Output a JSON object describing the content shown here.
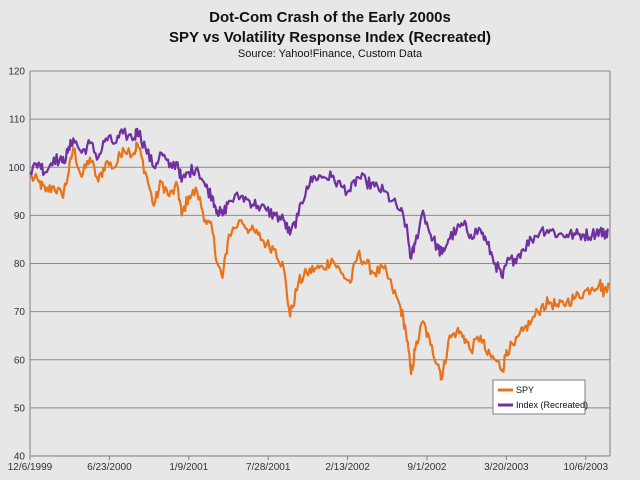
{
  "chart_data": {
    "type": "line",
    "title": "Dot-Com Crash of the Early 2000s",
    "subtitle": "SPY vs Volatility Response Index (Recreated)",
    "source": "Source: Yahoo!Finance, Custom Data",
    "xlabel": "",
    "ylabel": "",
    "ylim": [
      40,
      120
    ],
    "yticks": [
      40,
      50,
      60,
      70,
      80,
      90,
      100,
      110,
      120
    ],
    "xlim": [
      "1999-12-06",
      "2003-12-06"
    ],
    "xticks": [
      "12/6/1999",
      "6/23/2000",
      "1/9/2001",
      "7/28/2001",
      "2/13/2002",
      "9/1/2002",
      "3/20/2003",
      "10/6/2003"
    ],
    "grid": "horizontal",
    "legend_position": "bottom-right",
    "series": [
      {
        "name": "SPY",
        "color": "#e8731a",
        "points": [
          [
            "1999-12-06",
            98
          ],
          [
            "1999-12-28",
            97
          ],
          [
            "2000-01-14",
            95
          ],
          [
            "2000-02-04",
            96
          ],
          [
            "2000-02-25",
            94
          ],
          [
            "2000-03-10",
            98
          ],
          [
            "2000-03-24",
            104
          ],
          [
            "2000-04-14",
            98
          ],
          [
            "2000-05-05",
            102
          ],
          [
            "2000-05-26",
            97
          ],
          [
            "2000-06-14",
            101
          ],
          [
            "2000-07-07",
            100
          ],
          [
            "2000-07-27",
            104
          ],
          [
            "2000-08-25",
            103
          ],
          [
            "2000-09-01",
            105
          ],
          [
            "2000-09-22",
            99
          ],
          [
            "2000-10-13",
            92
          ],
          [
            "2000-11-01",
            97
          ],
          [
            "2000-11-21",
            94
          ],
          [
            "2000-12-12",
            96
          ],
          [
            "2000-12-22",
            90
          ],
          [
            "2001-01-09",
            94
          ],
          [
            "2001-01-30",
            95
          ],
          [
            "2001-02-20",
            89
          ],
          [
            "2001-03-09",
            87
          ],
          [
            "2001-03-22",
            80
          ],
          [
            "2001-04-04",
            77
          ],
          [
            "2001-04-20",
            86
          ],
          [
            "2001-05-21",
            89
          ],
          [
            "2001-06-11",
            87
          ],
          [
            "2001-07-02",
            86
          ],
          [
            "2001-07-24",
            84
          ],
          [
            "2001-08-15",
            83
          ],
          [
            "2001-09-05",
            79
          ],
          [
            "2001-09-21",
            69
          ],
          [
            "2001-10-12",
            76
          ],
          [
            "2001-11-02",
            78
          ],
          [
            "2001-11-23",
            79
          ],
          [
            "2001-12-14",
            79
          ],
          [
            "2002-01-04",
            81
          ],
          [
            "2002-01-28",
            78
          ],
          [
            "2002-02-20",
            76
          ],
          [
            "2002-03-11",
            82
          ],
          [
            "2002-04-01",
            80
          ],
          [
            "2002-04-22",
            78
          ],
          [
            "2002-05-15",
            79
          ],
          [
            "2002-06-05",
            75
          ],
          [
            "2002-06-26",
            71
          ],
          [
            "2002-07-10",
            66
          ],
          [
            "2002-07-23",
            57
          ],
          [
            "2002-08-02",
            62
          ],
          [
            "2002-08-22",
            68
          ],
          [
            "2002-09-10",
            63
          ],
          [
            "2002-09-30",
            59
          ],
          [
            "2002-10-09",
            56
          ],
          [
            "2002-10-25",
            64
          ],
          [
            "2002-11-15",
            66
          ],
          [
            "2002-12-02",
            65
          ],
          [
            "2002-12-20",
            62
          ],
          [
            "2003-01-14",
            65
          ],
          [
            "2003-01-31",
            61
          ],
          [
            "2003-02-20",
            60
          ],
          [
            "2003-03-11",
            58
          ],
          [
            "2003-03-20",
            62
          ],
          [
            "2003-04-10",
            63
          ],
          [
            "2003-05-01",
            66
          ],
          [
            "2003-05-22",
            68
          ],
          [
            "2003-06-16",
            71
          ],
          [
            "2003-07-08",
            72
          ],
          [
            "2003-07-29",
            71
          ],
          [
            "2003-08-19",
            72
          ],
          [
            "2003-09-10",
            73
          ],
          [
            "2003-10-01",
            74
          ],
          [
            "2003-10-22",
            75
          ],
          [
            "2003-11-10",
            76
          ],
          [
            "2003-11-21",
            74
          ],
          [
            "2003-12-02",
            76
          ]
        ]
      },
      {
        "name": "Index (Recreated)",
        "color": "#7030a0",
        "points": [
          [
            "1999-12-06",
            99
          ],
          [
            "1999-12-28",
            101
          ],
          [
            "2000-01-14",
            99
          ],
          [
            "2000-02-04",
            102
          ],
          [
            "2000-02-25",
            101
          ],
          [
            "2000-03-10",
            103
          ],
          [
            "2000-03-24",
            106
          ],
          [
            "2000-04-14",
            103
          ],
          [
            "2000-05-05",
            105
          ],
          [
            "2000-05-26",
            102
          ],
          [
            "2000-06-14",
            106
          ],
          [
            "2000-07-07",
            105
          ],
          [
            "2000-07-27",
            107
          ],
          [
            "2000-08-25",
            106
          ],
          [
            "2000-09-01",
            108
          ],
          [
            "2000-09-22",
            104
          ],
          [
            "2000-10-13",
            100
          ],
          [
            "2000-11-01",
            103
          ],
          [
            "2000-11-21",
            100
          ],
          [
            "2000-12-12",
            101
          ],
          [
            "2000-12-22",
            97
          ],
          [
            "2001-01-09",
            99
          ],
          [
            "2001-01-30",
            100
          ],
          [
            "2001-02-20",
            96
          ],
          [
            "2001-03-09",
            94
          ],
          [
            "2001-03-22",
            91
          ],
          [
            "2001-04-04",
            90
          ],
          [
            "2001-04-20",
            93
          ],
          [
            "2001-05-21",
            94
          ],
          [
            "2001-06-11",
            93
          ],
          [
            "2001-07-02",
            92
          ],
          [
            "2001-07-24",
            91
          ],
          [
            "2001-08-15",
            90
          ],
          [
            "2001-09-05",
            89
          ],
          [
            "2001-09-21",
            86
          ],
          [
            "2001-10-12",
            90
          ],
          [
            "2001-11-02",
            96
          ],
          [
            "2001-11-23",
            98
          ],
          [
            "2001-12-14",
            98
          ],
          [
            "2002-01-04",
            98
          ],
          [
            "2002-01-28",
            96
          ],
          [
            "2002-02-20",
            95
          ],
          [
            "2002-03-11",
            98
          ],
          [
            "2002-04-01",
            97
          ],
          [
            "2002-04-22",
            96
          ],
          [
            "2002-05-15",
            95
          ],
          [
            "2002-06-05",
            93
          ],
          [
            "2002-06-26",
            91
          ],
          [
            "2002-07-10",
            88
          ],
          [
            "2002-07-23",
            81
          ],
          [
            "2002-08-02",
            84
          ],
          [
            "2002-08-22",
            91
          ],
          [
            "2002-09-10",
            86
          ],
          [
            "2002-09-30",
            83
          ],
          [
            "2002-10-09",
            82
          ],
          [
            "2002-10-25",
            85
          ],
          [
            "2002-11-15",
            87
          ],
          [
            "2002-12-02",
            88
          ],
          [
            "2002-12-20",
            86
          ],
          [
            "2003-01-14",
            87
          ],
          [
            "2003-01-31",
            84
          ],
          [
            "2003-02-20",
            80
          ],
          [
            "2003-03-11",
            77
          ],
          [
            "2003-03-20",
            80
          ],
          [
            "2003-04-10",
            81
          ],
          [
            "2003-05-01",
            83
          ],
          [
            "2003-05-22",
            85
          ],
          [
            "2003-06-16",
            87
          ],
          [
            "2003-07-08",
            87
          ],
          [
            "2003-07-29",
            86
          ],
          [
            "2003-08-19",
            86
          ],
          [
            "2003-09-10",
            86
          ],
          [
            "2003-10-01",
            86
          ],
          [
            "2003-10-22",
            86
          ],
          [
            "2003-11-10",
            87
          ],
          [
            "2003-11-21",
            86
          ],
          [
            "2003-12-02",
            87
          ]
        ]
      }
    ]
  }
}
